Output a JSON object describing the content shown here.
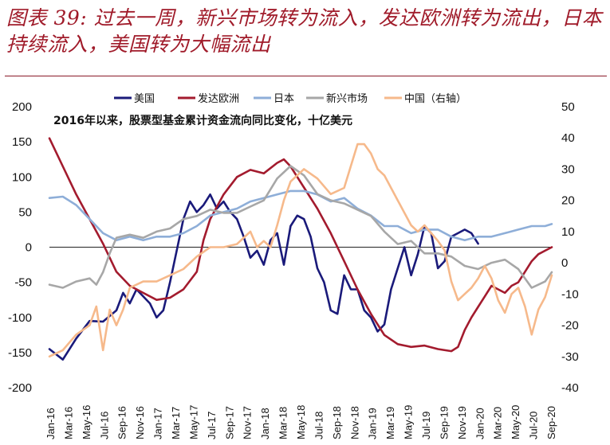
{
  "header": {
    "title": "图表 39: 过去一周，新兴市场转为流入，发达欧洲转为流出，日本持续流入，美国转为大幅流出"
  },
  "chart_data": {
    "type": "line",
    "subtitle": "2016年以来，股票型基金累计资金流向同比变化，十亿美元",
    "x_tick_labels": [
      "Jan-16",
      "Mar-16",
      "May-16",
      "Jul-16",
      "Sep-16",
      "Nov-16",
      "Jan-17",
      "Mar-17",
      "May-17",
      "Jul-17",
      "Sep-17",
      "Nov-17",
      "Jan-18",
      "Mar-18",
      "May-18",
      "Jul-18",
      "Sep-18",
      "Nov-18",
      "Jan-19",
      "Mar-19",
      "May-19",
      "Jul-19",
      "Sep-19",
      "Nov-19",
      "Jan-20",
      "Mar-20",
      "May-20",
      "Jul-20",
      "Sep-20"
    ],
    "y_left": {
      "min": -200,
      "max": 200,
      "ticks": [
        200,
        150,
        100,
        50,
        0,
        -50,
        -100,
        -150,
        -200
      ]
    },
    "y_right": {
      "min": -40,
      "max": 50,
      "ticks": [
        50,
        40,
        30,
        20,
        10,
        0,
        -10,
        -20,
        -30,
        -40
      ]
    },
    "legend_position": "top",
    "grid": false,
    "series": [
      {
        "name": "美国",
        "color": "#1a1a7a",
        "axis": "left",
        "points": [
          [
            0,
            -145
          ],
          [
            2,
            -160
          ],
          [
            4,
            -130
          ],
          [
            6,
            -105
          ],
          [
            8,
            -106
          ],
          [
            10,
            -90
          ],
          [
            11,
            -65
          ],
          [
            12,
            -80
          ],
          [
            13,
            -60
          ],
          [
            15,
            -80
          ],
          [
            16,
            -100
          ],
          [
            17,
            -90
          ],
          [
            18,
            -50
          ],
          [
            19,
            -5
          ],
          [
            20,
            40
          ],
          [
            21,
            65
          ],
          [
            22,
            50
          ],
          [
            23,
            60
          ],
          [
            24,
            75
          ],
          [
            25,
            55
          ],
          [
            26,
            65
          ],
          [
            27,
            50
          ],
          [
            28,
            40
          ],
          [
            29,
            15
          ],
          [
            30,
            -15
          ],
          [
            31,
            -5
          ],
          [
            32,
            -25
          ],
          [
            33,
            10
          ],
          [
            34,
            20
          ],
          [
            35,
            -25
          ],
          [
            36,
            30
          ],
          [
            37,
            45
          ],
          [
            38,
            40
          ],
          [
            39,
            15
          ],
          [
            40,
            -30
          ],
          [
            41,
            -50
          ],
          [
            42,
            -90
          ],
          [
            43,
            -95
          ],
          [
            44,
            -40
          ],
          [
            45,
            -60
          ],
          [
            46,
            -60
          ],
          [
            47,
            -90
          ],
          [
            48,
            -100
          ],
          [
            49,
            -120
          ],
          [
            50,
            -110
          ],
          [
            51,
            -60
          ],
          [
            52,
            -30
          ],
          [
            53,
            0
          ],
          [
            54,
            -40
          ],
          [
            55,
            -10
          ],
          [
            56,
            30
          ],
          [
            57,
            20
          ],
          [
            58,
            -30
          ],
          [
            59,
            -20
          ],
          [
            60,
            15
          ],
          [
            61,
            20
          ],
          [
            62,
            25
          ],
          [
            63,
            20
          ],
          [
            64,
            5
          ]
        ]
      },
      {
        "name": "发达欧洲",
        "color": "#a31b2e",
        "axis": "left",
        "points": [
          [
            0,
            155
          ],
          [
            2,
            115
          ],
          [
            4,
            75
          ],
          [
            6,
            40
          ],
          [
            8,
            5
          ],
          [
            10,
            -35
          ],
          [
            12,
            -55
          ],
          [
            14,
            -65
          ],
          [
            16,
            -75
          ],
          [
            18,
            -72
          ],
          [
            20,
            -60
          ],
          [
            22,
            -35
          ],
          [
            23,
            10
          ],
          [
            24,
            40
          ],
          [
            26,
            75
          ],
          [
            28,
            100
          ],
          [
            30,
            110
          ],
          [
            32,
            105
          ],
          [
            34,
            120
          ],
          [
            35,
            125
          ],
          [
            36,
            115
          ],
          [
            38,
            85
          ],
          [
            40,
            55
          ],
          [
            42,
            20
          ],
          [
            44,
            -20
          ],
          [
            46,
            -60
          ],
          [
            48,
            -95
          ],
          [
            50,
            -125
          ],
          [
            52,
            -138
          ],
          [
            54,
            -142
          ],
          [
            56,
            -140
          ],
          [
            58,
            -145
          ],
          [
            60,
            -148
          ],
          [
            61,
            -142
          ],
          [
            62,
            -118
          ],
          [
            63,
            -100
          ],
          [
            64,
            -85
          ],
          [
            65,
            -70
          ],
          [
            66,
            -55
          ],
          [
            67,
            -60
          ],
          [
            68,
            -65
          ],
          [
            69,
            -55
          ],
          [
            70,
            -50
          ],
          [
            71,
            -35
          ],
          [
            72,
            -20
          ],
          [
            73,
            -10
          ],
          [
            74,
            -5
          ],
          [
            75,
            0
          ]
        ]
      },
      {
        "name": "日本",
        "color": "#8eaed8",
        "axis": "left",
        "points": [
          [
            0,
            70
          ],
          [
            2,
            72
          ],
          [
            4,
            60
          ],
          [
            6,
            40
          ],
          [
            8,
            20
          ],
          [
            10,
            10
          ],
          [
            12,
            15
          ],
          [
            14,
            10
          ],
          [
            16,
            15
          ],
          [
            18,
            15
          ],
          [
            20,
            20
          ],
          [
            22,
            30
          ],
          [
            24,
            45
          ],
          [
            26,
            50
          ],
          [
            28,
            55
          ],
          [
            30,
            65
          ],
          [
            32,
            70
          ],
          [
            34,
            75
          ],
          [
            36,
            80
          ],
          [
            38,
            80
          ],
          [
            40,
            75
          ],
          [
            42,
            65
          ],
          [
            44,
            70
          ],
          [
            46,
            55
          ],
          [
            48,
            45
          ],
          [
            50,
            30
          ],
          [
            52,
            30
          ],
          [
            54,
            20
          ],
          [
            56,
            25
          ],
          [
            58,
            25
          ],
          [
            60,
            15
          ],
          [
            62,
            10
          ],
          [
            64,
            15
          ],
          [
            66,
            15
          ],
          [
            68,
            20
          ],
          [
            70,
            25
          ],
          [
            72,
            30
          ],
          [
            74,
            30
          ],
          [
            75,
            33
          ]
        ]
      },
      {
        "name": "新兴市场",
        "color": "#a7a7a7",
        "axis": "right",
        "points": [
          [
            0,
            -7
          ],
          [
            2,
            -8
          ],
          [
            4,
            -6
          ],
          [
            6,
            -5
          ],
          [
            7,
            -7
          ],
          [
            8,
            -3
          ],
          [
            9,
            3
          ],
          [
            10,
            8
          ],
          [
            12,
            9
          ],
          [
            14,
            8
          ],
          [
            16,
            10
          ],
          [
            18,
            11
          ],
          [
            20,
            14
          ],
          [
            22,
            15
          ],
          [
            24,
            17
          ],
          [
            26,
            16
          ],
          [
            28,
            16
          ],
          [
            30,
            18
          ],
          [
            32,
            20
          ],
          [
            34,
            27
          ],
          [
            36,
            31
          ],
          [
            38,
            28
          ],
          [
            40,
            22
          ],
          [
            42,
            20
          ],
          [
            44,
            19
          ],
          [
            46,
            17
          ],
          [
            48,
            15
          ],
          [
            50,
            10
          ],
          [
            52,
            6
          ],
          [
            54,
            7
          ],
          [
            56,
            3
          ],
          [
            58,
            3
          ],
          [
            60,
            2
          ],
          [
            62,
            -1
          ],
          [
            64,
            -2
          ],
          [
            66,
            0
          ],
          [
            68,
            1
          ],
          [
            70,
            -2
          ],
          [
            72,
            -8
          ],
          [
            73,
            -7
          ],
          [
            74,
            -6
          ],
          [
            75,
            -3
          ]
        ]
      },
      {
        "name": "中国（右轴）",
        "color": "#f6b98b",
        "axis": "right",
        "points": [
          [
            0,
            -30
          ],
          [
            2,
            -28
          ],
          [
            4,
            -23
          ],
          [
            6,
            -20
          ],
          [
            7,
            -14
          ],
          [
            8,
            -28
          ],
          [
            9,
            -15
          ],
          [
            10,
            -20
          ],
          [
            11,
            -15
          ],
          [
            12,
            -8
          ],
          [
            14,
            -6
          ],
          [
            16,
            -6
          ],
          [
            18,
            -4
          ],
          [
            20,
            -2
          ],
          [
            22,
            2
          ],
          [
            24,
            5
          ],
          [
            26,
            5
          ],
          [
            28,
            6
          ],
          [
            30,
            10
          ],
          [
            31,
            5
          ],
          [
            32,
            7
          ],
          [
            33,
            5
          ],
          [
            34,
            12
          ],
          [
            35,
            20
          ],
          [
            36,
            26
          ],
          [
            38,
            30
          ],
          [
            40,
            27
          ],
          [
            42,
            22
          ],
          [
            44,
            24
          ],
          [
            46,
            38
          ],
          [
            47,
            38
          ],
          [
            48,
            35
          ],
          [
            49,
            30
          ],
          [
            50,
            28
          ],
          [
            52,
            20
          ],
          [
            54,
            12
          ],
          [
            55,
            10
          ],
          [
            56,
            12
          ],
          [
            58,
            7
          ],
          [
            59,
            4
          ],
          [
            60,
            -6
          ],
          [
            61,
            -12
          ],
          [
            62,
            -10
          ],
          [
            63,
            -8
          ],
          [
            64,
            -5
          ],
          [
            65,
            -1
          ],
          [
            66,
            -5
          ],
          [
            67,
            -12
          ],
          [
            68,
            -16
          ],
          [
            69,
            -10
          ],
          [
            70,
            -8
          ],
          [
            71,
            -14
          ],
          [
            72,
            -23
          ],
          [
            73,
            -15
          ],
          [
            74,
            -11
          ],
          [
            75,
            -4
          ]
        ]
      }
    ]
  }
}
